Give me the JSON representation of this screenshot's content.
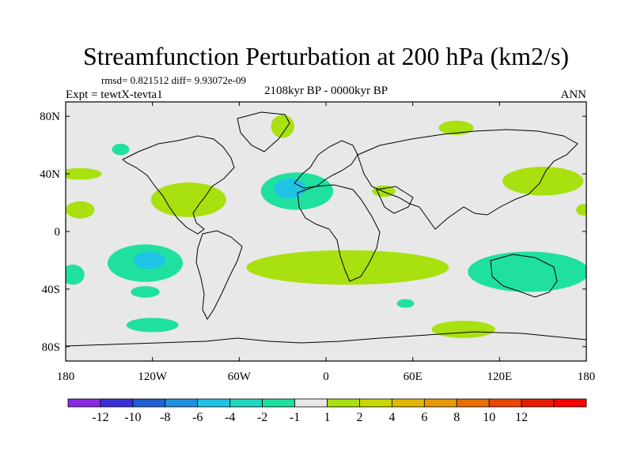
{
  "chart_data": {
    "type": "contour-map",
    "title": "Streamfunction Perturbation at 200 hPa (km2/s)",
    "stats": "rmsd= 0.821512  diff= 9.93072e-09",
    "left_label": "Expt = tewtX-tevta1",
    "center_label": "2108kyr BP - 0000kyr BP",
    "right_label": "ANN",
    "x_range": [
      -180,
      180
    ],
    "y_range": [
      -90,
      90
    ],
    "x_ticks": [
      {
        "value": -180,
        "label": "180"
      },
      {
        "value": -120,
        "label": "120W"
      },
      {
        "value": -60,
        "label": "60W"
      },
      {
        "value": 0,
        "label": "0"
      },
      {
        "value": 60,
        "label": "60E"
      },
      {
        "value": 120,
        "label": "120E"
      },
      {
        "value": 180,
        "label": "180"
      }
    ],
    "y_ticks": [
      {
        "value": 80,
        "label": "80N"
      },
      {
        "value": 40,
        "label": "40N"
      },
      {
        "value": 0,
        "label": "0"
      },
      {
        "value": -40,
        "label": "40S"
      },
      {
        "value": -80,
        "label": "80S"
      }
    ],
    "colorbar": {
      "colors": [
        "#8a2be2",
        "#3b2fd8",
        "#1f5fd0",
        "#1e90e0",
        "#1ec4e6",
        "#20d8c0",
        "#20e0a0",
        "#e8e8e8",
        "#a8e010",
        "#c8d800",
        "#e0b800",
        "#e89800",
        "#e87000",
        "#e84800",
        "#e81c00",
        "#ff0000"
      ],
      "labels": [
        "-12",
        "-10",
        "-8",
        "-6",
        "-4",
        "-2",
        "-1",
        "1",
        "2",
        "4",
        "6",
        "8",
        "10",
        "12"
      ]
    },
    "regions": [
      {
        "level": "2",
        "color": "#a8e010",
        "lon": -30,
        "lat": 73,
        "rlon": 8,
        "rlat": 8
      },
      {
        "level": "-1",
        "color": "#20e0a0",
        "lon": -142,
        "lat": 57,
        "rlon": 6,
        "rlat": 4
      },
      {
        "level": "2",
        "color": "#a8e010",
        "lon": 90,
        "lat": 72,
        "rlon": 12,
        "rlat": 5
      },
      {
        "level": "2",
        "color": "#a8e010",
        "lon": -170,
        "lat": 40,
        "rlon": 15,
        "rlat": 4
      },
      {
        "level": "2",
        "color": "#a8e010",
        "lon": -170,
        "lat": 15,
        "rlon": 10,
        "rlat": 6
      },
      {
        "level": "2",
        "color": "#a8e010",
        "lon": -95,
        "lat": 22,
        "rlon": 26,
        "rlat": 12
      },
      {
        "level": "-1",
        "color": "#20e0a0",
        "lon": -20,
        "lat": 28,
        "rlon": 25,
        "rlat": 13
      },
      {
        "level": "-2",
        "color": "#1ec4e6",
        "lon": -25,
        "lat": 30,
        "rlon": 11,
        "rlat": 7
      },
      {
        "level": "2",
        "color": "#a8e010",
        "lon": 40,
        "lat": 28,
        "rlon": 8,
        "rlat": 4
      },
      {
        "level": "2",
        "color": "#a8e010",
        "lon": 150,
        "lat": 35,
        "rlon": 28,
        "rlat": 10
      },
      {
        "level": "2",
        "color": "#a8e010",
        "lon": 178,
        "lat": 15,
        "rlon": 5,
        "rlat": 4
      },
      {
        "level": "-1",
        "color": "#20e0a0",
        "lon": -125,
        "lat": -22,
        "rlon": 26,
        "rlat": 13
      },
      {
        "level": "-2",
        "color": "#1ec4e6",
        "lon": -122,
        "lat": -20,
        "rlon": 11,
        "rlat": 6
      },
      {
        "level": "-1",
        "color": "#20e0a0",
        "lon": -175,
        "lat": -30,
        "rlon": 8,
        "rlat": 7
      },
      {
        "level": "-1",
        "color": "#20e0a0",
        "lon": -125,
        "lat": -42,
        "rlon": 10,
        "rlat": 4
      },
      {
        "level": "2",
        "color": "#a8e010",
        "lon": 15,
        "lat": -25,
        "rlon": 70,
        "rlat": 12
      },
      {
        "level": "-1",
        "color": "#20e0a0",
        "lon": 55,
        "lat": -50,
        "rlon": 6,
        "rlat": 3
      },
      {
        "level": "-1",
        "color": "#20e0a0",
        "lon": 140,
        "lat": -28,
        "rlon": 42,
        "rlat": 14
      },
      {
        "level": "-1",
        "color": "#20e0a0",
        "lon": -120,
        "lat": -65,
        "rlon": 18,
        "rlat": 5
      },
      {
        "level": "2",
        "color": "#a8e010",
        "lon": 95,
        "lat": -68,
        "rlon": 22,
        "rlat": 6
      }
    ]
  }
}
